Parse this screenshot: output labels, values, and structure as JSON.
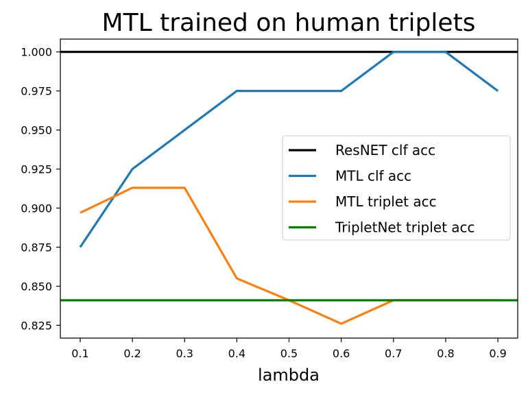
{
  "chart_data": {
    "type": "line",
    "title": "MTL trained on human triplets",
    "xlabel": "lambda",
    "ylabel": "",
    "x": [
      0.1,
      0.2,
      0.3,
      0.4,
      0.5,
      0.6,
      0.7,
      0.8,
      0.9
    ],
    "x_ticks": [
      "0.1",
      "0.2",
      "0.3",
      "0.4",
      "0.5",
      "0.6",
      "0.7",
      "0.8",
      "0.9"
    ],
    "y_ticks": [
      "1.000",
      "0.975",
      "0.950",
      "0.925",
      "0.900",
      "0.875",
      "0.850",
      "0.825"
    ],
    "xlim": [
      0.062,
      0.938
    ],
    "ylim": [
      0.8168,
      1.0082
    ],
    "grid": false,
    "legend_position": "center-right",
    "series": [
      {
        "name": "ResNET clf acc",
        "color": "#000000",
        "kind": "hline",
        "value": 1.0
      },
      {
        "name": "MTL clf acc",
        "color": "#1f77b4",
        "kind": "line",
        "values": [
          0.875,
          0.925,
          0.95,
          0.975,
          0.975,
          0.975,
          1.0,
          1.0,
          0.975
        ]
      },
      {
        "name": "MTL triplet acc",
        "color": "#ff7f0e",
        "kind": "line",
        "values": [
          0.897,
          0.913,
          0.913,
          0.855,
          0.841,
          0.826,
          0.841,
          0.841,
          0.841
        ]
      },
      {
        "name": "TripletNet triplet acc",
        "color": "#008000",
        "kind": "hline",
        "value": 0.841
      }
    ]
  }
}
